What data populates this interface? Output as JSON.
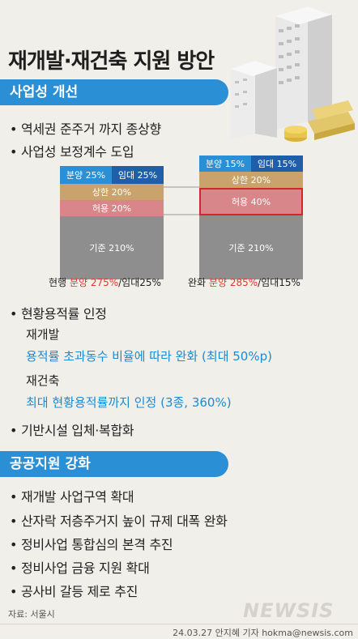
{
  "title": "재개발·재건축 지원 방안",
  "section1": {
    "label": "사업성 개선",
    "bullets": [
      "역세권 준주거 까지 종상향",
      "사업성 보정계수 도입"
    ]
  },
  "chart_left": {
    "top_segments": [
      {
        "label": "분양 25%"
      },
      {
        "label": "임대 25%"
      }
    ],
    "segments": [
      {
        "label": "상한 20%"
      },
      {
        "label": "허용 20%"
      },
      {
        "label": "기준 210%"
      }
    ],
    "caption_prefix": "현행",
    "caption_highlight": "분양 275%",
    "caption_suffix": "/임대25%"
  },
  "chart_right": {
    "top_segments": [
      {
        "label": "분양 15%"
      },
      {
        "label": "임대 15%"
      }
    ],
    "segments": [
      {
        "label": "상한 20%"
      },
      {
        "label": "허용 40%"
      },
      {
        "label": "기준 210%"
      }
    ],
    "caption_prefix": "완화",
    "caption_highlight": "분양 285%",
    "caption_suffix": "/임대15%"
  },
  "chart_data": [
    {
      "type": "bar",
      "categories": [
        "현행"
      ],
      "series": [
        {
          "name": "기준",
          "values": [
            210
          ]
        },
        {
          "name": "허용",
          "values": [
            20
          ]
        },
        {
          "name": "상한",
          "values": [
            20
          ]
        },
        {
          "name": "분양",
          "values": [
            25
          ]
        },
        {
          "name": "임대",
          "values": [
            25
          ]
        }
      ]
    },
    {
      "type": "bar",
      "categories": [
        "완화"
      ],
      "series": [
        {
          "name": "기준",
          "values": [
            210
          ]
        },
        {
          "name": "허용",
          "values": [
            40
          ]
        },
        {
          "name": "상한",
          "values": [
            20
          ]
        },
        {
          "name": "분양",
          "values": [
            15
          ]
        },
        {
          "name": "임대",
          "values": [
            15
          ]
        }
      ]
    }
  ],
  "floor_area": {
    "bullet": "현황용적률 인정",
    "redev_label": "재개발",
    "redev_desc": "용적률 초과동수 비율에 따라 완화 (최대 50%p)",
    "recon_label": "재건축",
    "recon_desc": "최대 현황용적률까지 인정 (3종, 360%)"
  },
  "infra_bullet": "기반시설 입체·복합화",
  "section2": {
    "label": "공공지원 강화",
    "bullets": [
      "재개발 사업구역 확대",
      "산자락 저층주거지 높이 규제 대폭 완화",
      "정비사업 통합심의 본격 추진",
      "정비사업 금융 지원 확대",
      "공사비 갈등 제로 추진"
    ]
  },
  "footer": {
    "source": "자료: 서울시",
    "credit": "24.03.27 안지혜 기자 hokma@newsis.com",
    "logo": "NEWSIS"
  },
  "colors": {
    "blue": "#2a8fd4",
    "navy": "#1f5ea8",
    "tan": "#c9a36b",
    "pink": "#d9868a",
    "gray": "#8e8e8e",
    "red": "#e0392e",
    "lightblue": "#1b8bd1"
  }
}
